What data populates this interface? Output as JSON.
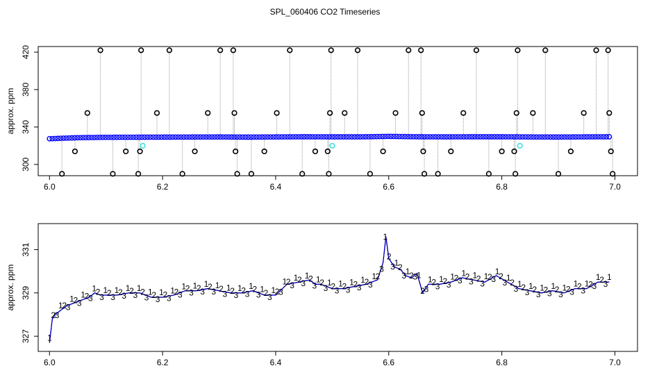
{
  "figure": {
    "title": "SPL_060406  CO2 Timeseries"
  },
  "colors": {
    "frame": "#000000",
    "raw_series": "#0000ff",
    "outlier": "#000000",
    "drop": "#999999",
    "marker_cyan": "#40e0e0",
    "label_1": "#ff0000",
    "label_2": "#00a000",
    "label_3": "#0000cc"
  },
  "chart_data": [
    {
      "type": "scatter",
      "title": "",
      "xlabel": "",
      "ylabel": "approx. ppm",
      "xlim": [
        5.98,
        7.04
      ],
      "ylim": [
        288,
        426
      ],
      "x_ticks": [
        6.0,
        6.2,
        6.4,
        6.6,
        6.8,
        7.0
      ],
      "x_tick_labels": [
        "6.0",
        "6.2",
        "6.4",
        "6.6",
        "6.8",
        "7.0"
      ],
      "y_ticks": [
        300,
        340,
        380,
        420
      ],
      "y_tick_labels": [
        "300",
        "340",
        "380",
        "420"
      ],
      "grid": false,
      "baseline": {
        "name": "",
        "x": [
          6.0,
          6.05,
          6.1,
          6.15,
          6.2,
          6.25,
          6.3,
          6.35,
          6.4,
          6.45,
          6.5,
          6.55,
          6.6,
          6.65,
          6.7,
          6.75,
          6.8,
          6.85,
          6.9,
          6.95,
          6.99
        ],
        "y": [
          327.5,
          328.6,
          329.0,
          329.1,
          329.2,
          329.3,
          329.4,
          329.2,
          329.4,
          329.6,
          329.5,
          329.5,
          330.0,
          329.6,
          329.5,
          329.6,
          329.6,
          329.4,
          329.3,
          329.5,
          329.6
        ]
      },
      "outliers": [
        {
          "x": 6.022,
          "y": 290
        },
        {
          "x": 6.045,
          "y": 314
        },
        {
          "x": 6.067,
          "y": 355
        },
        {
          "x": 6.09,
          "y": 422
        },
        {
          "x": 6.112,
          "y": 290
        },
        {
          "x": 6.135,
          "y": 314
        },
        {
          "x": 6.157,
          "y": 290
        },
        {
          "x": 6.16,
          "y": 314
        },
        {
          "x": 6.162,
          "y": 422
        },
        {
          "x": 6.19,
          "y": 355
        },
        {
          "x": 6.212,
          "y": 422
        },
        {
          "x": 6.235,
          "y": 290
        },
        {
          "x": 6.257,
          "y": 314
        },
        {
          "x": 6.28,
          "y": 355
        },
        {
          "x": 6.302,
          "y": 422
        },
        {
          "x": 6.325,
          "y": 422
        },
        {
          "x": 6.327,
          "y": 355
        },
        {
          "x": 6.329,
          "y": 314
        },
        {
          "x": 6.332,
          "y": 290
        },
        {
          "x": 6.357,
          "y": 290
        },
        {
          "x": 6.38,
          "y": 314
        },
        {
          "x": 6.402,
          "y": 355
        },
        {
          "x": 6.425,
          "y": 422
        },
        {
          "x": 6.447,
          "y": 290
        },
        {
          "x": 6.47,
          "y": 314
        },
        {
          "x": 6.492,
          "y": 314
        },
        {
          "x": 6.494,
          "y": 290
        },
        {
          "x": 6.496,
          "y": 355
        },
        {
          "x": 6.498,
          "y": 422
        },
        {
          "x": 6.522,
          "y": 355
        },
        {
          "x": 6.545,
          "y": 422
        },
        {
          "x": 6.567,
          "y": 290
        },
        {
          "x": 6.59,
          "y": 314
        },
        {
          "x": 6.612,
          "y": 355
        },
        {
          "x": 6.635,
          "y": 422
        },
        {
          "x": 6.657,
          "y": 422
        },
        {
          "x": 6.659,
          "y": 355
        },
        {
          "x": 6.661,
          "y": 314
        },
        {
          "x": 6.663,
          "y": 290
        },
        {
          "x": 6.687,
          "y": 290
        },
        {
          "x": 6.71,
          "y": 314
        },
        {
          "x": 6.732,
          "y": 355
        },
        {
          "x": 6.755,
          "y": 422
        },
        {
          "x": 6.777,
          "y": 290
        },
        {
          "x": 6.8,
          "y": 314
        },
        {
          "x": 6.822,
          "y": 314
        },
        {
          "x": 6.824,
          "y": 290
        },
        {
          "x": 6.826,
          "y": 355
        },
        {
          "x": 6.828,
          "y": 422
        },
        {
          "x": 6.855,
          "y": 355
        },
        {
          "x": 6.877,
          "y": 422
        },
        {
          "x": 6.9,
          "y": 290
        },
        {
          "x": 6.922,
          "y": 314
        },
        {
          "x": 6.945,
          "y": 355
        },
        {
          "x": 6.967,
          "y": 422
        },
        {
          "x": 6.988,
          "y": 422
        },
        {
          "x": 6.99,
          "y": 355
        },
        {
          "x": 6.993,
          "y": 314
        },
        {
          "x": 6.996,
          "y": 290
        }
      ],
      "cyan_markers": [
        {
          "x": 6.165,
          "y": 320
        },
        {
          "x": 6.5,
          "y": 320
        },
        {
          "x": 6.832,
          "y": 320
        }
      ]
    },
    {
      "type": "line",
      "title": "",
      "xlabel": "",
      "ylabel": "approx. ppm",
      "xlim": [
        5.98,
        7.04
      ],
      "ylim": [
        326.3,
        332.2
      ],
      "x_ticks": [
        6.0,
        6.2,
        6.4,
        6.6,
        6.8,
        7.0
      ],
      "x_tick_labels": [
        "6.0",
        "6.2",
        "6.4",
        "6.6",
        "6.8",
        "7.0"
      ],
      "y_ticks": [
        327,
        329,
        331
      ],
      "y_tick_labels": [
        "327",
        "329",
        "331"
      ],
      "grid": false,
      "point_labels": [
        "1",
        "2",
        "3"
      ],
      "series": [
        {
          "name": "",
          "x": [
            6.0,
            6.005,
            6.01,
            6.02,
            6.03,
            6.04,
            6.05,
            6.06,
            6.07,
            6.08,
            6.09,
            6.1,
            6.12,
            6.14,
            6.16,
            6.18,
            6.2,
            6.22,
            6.24,
            6.26,
            6.28,
            6.3,
            6.32,
            6.34,
            6.36,
            6.38,
            6.4,
            6.42,
            6.44,
            6.46,
            6.47,
            6.48,
            6.5,
            6.52,
            6.54,
            6.56,
            6.57,
            6.58,
            6.59,
            6.595,
            6.6,
            6.61,
            6.62,
            6.63,
            6.64,
            6.65,
            6.66,
            6.67,
            6.69,
            6.71,
            6.73,
            6.75,
            6.77,
            6.79,
            6.81,
            6.83,
            6.85,
            6.87,
            6.89,
            6.91,
            6.93,
            6.95,
            6.97,
            6.99
          ],
          "y": [
            326.7,
            327.8,
            328.0,
            328.2,
            328.4,
            328.5,
            328.6,
            328.7,
            328.8,
            329.0,
            328.9,
            328.9,
            328.9,
            329.0,
            329.0,
            328.8,
            328.8,
            328.9,
            329.1,
            329.1,
            329.2,
            329.1,
            329.0,
            329.0,
            329.1,
            328.9,
            328.9,
            329.4,
            329.5,
            329.6,
            329.4,
            329.4,
            329.2,
            329.2,
            329.3,
            329.4,
            329.5,
            329.6,
            330.4,
            331.6,
            330.6,
            330.2,
            330.1,
            329.8,
            329.7,
            329.9,
            329.0,
            329.4,
            329.4,
            329.5,
            329.7,
            329.6,
            329.5,
            329.8,
            329.5,
            329.2,
            329.1,
            329.0,
            329.1,
            329.0,
            329.2,
            329.2,
            329.5,
            329.5
          ]
        }
      ]
    }
  ]
}
